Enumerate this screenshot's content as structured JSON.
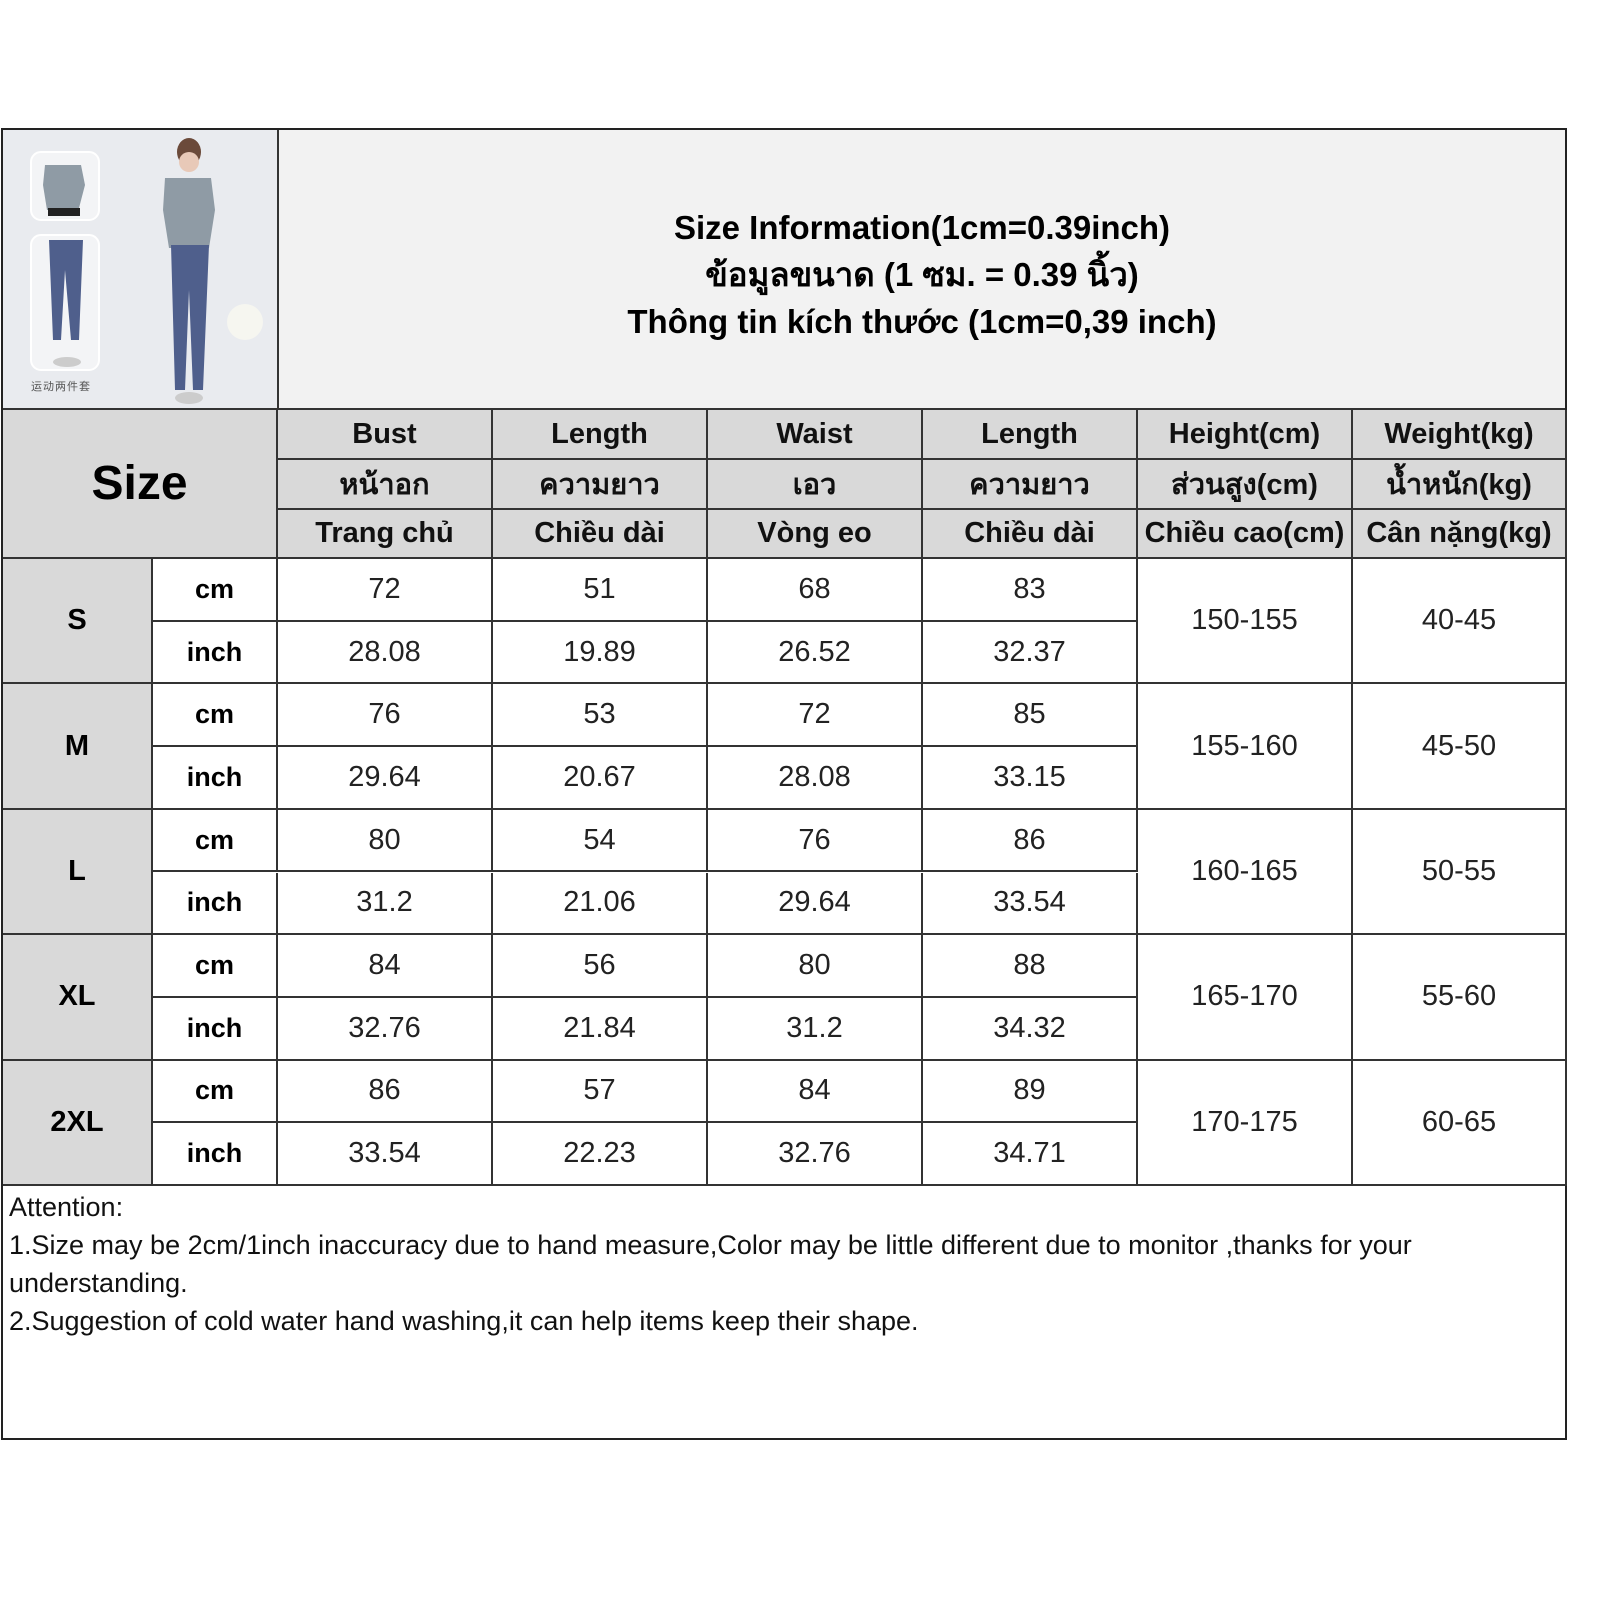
{
  "title": {
    "line_en": "Size Information(1cm=0.39inch)",
    "line_th": "ข้อมูลขนาด (1 ซม. = 0.39 นิ้ว)",
    "line_vi": "Thông tin kích thước (1cm=0,39 inch)"
  },
  "photo": {
    "caption": "运动两件套"
  },
  "size_label": "Size",
  "columns": [
    {
      "en": "Bust",
      "th": "หน้าอก",
      "vi": "Trang chủ"
    },
    {
      "en": "Length",
      "th": "ความยาว",
      "vi": "Chiều dài"
    },
    {
      "en": "Waist",
      "th": "เอว",
      "vi": "Vòng eo"
    },
    {
      "en": "Length",
      "th": "ความยาว",
      "vi": "Chiều dài"
    },
    {
      "en": "Height(cm)",
      "th": "ส่วนสูง(cm)",
      "vi": "Chiều cao(cm)"
    },
    {
      "en": "Weight(kg)",
      "th": "น้ำหนัก(kg)",
      "vi": "Cân nặng(kg)"
    }
  ],
  "units": {
    "cm": "cm",
    "inch": "inch"
  },
  "rows": [
    {
      "size": "S",
      "cm": [
        "72",
        "51",
        "68",
        "83"
      ],
      "inch": [
        "28.08",
        "19.89",
        "26.52",
        "32.37"
      ],
      "height": "150-155",
      "weight": "40-45"
    },
    {
      "size": "M",
      "cm": [
        "76",
        "53",
        "72",
        "85"
      ],
      "inch": [
        "29.64",
        "20.67",
        "28.08",
        "33.15"
      ],
      "height": "155-160",
      "weight": "45-50"
    },
    {
      "size": "L",
      "cm": [
        "80",
        "54",
        "76",
        "86"
      ],
      "inch": [
        "31.2",
        "21.06",
        "29.64",
        "33.54"
      ],
      "height": "160-165",
      "weight": "50-55"
    },
    {
      "size": "XL",
      "cm": [
        "84",
        "56",
        "80",
        "88"
      ],
      "inch": [
        "32.76",
        "21.84",
        "31.2",
        "34.32"
      ],
      "height": "165-170",
      "weight": "55-60"
    },
    {
      "size": "2XL",
      "cm": [
        "86",
        "57",
        "84",
        "89"
      ],
      "inch": [
        "33.54",
        "22.23",
        "32.76",
        "34.71"
      ],
      "height": "170-175",
      "weight": "60-65"
    }
  ],
  "notes": {
    "heading": "Attention:",
    "line1": "1.Size may be 2cm/1inch inaccuracy due to hand measure,Color may be little different due to monitor ,thanks for your understanding.",
    "line2": "2.Suggestion of cold water hand washing,it can help items keep their shape."
  }
}
